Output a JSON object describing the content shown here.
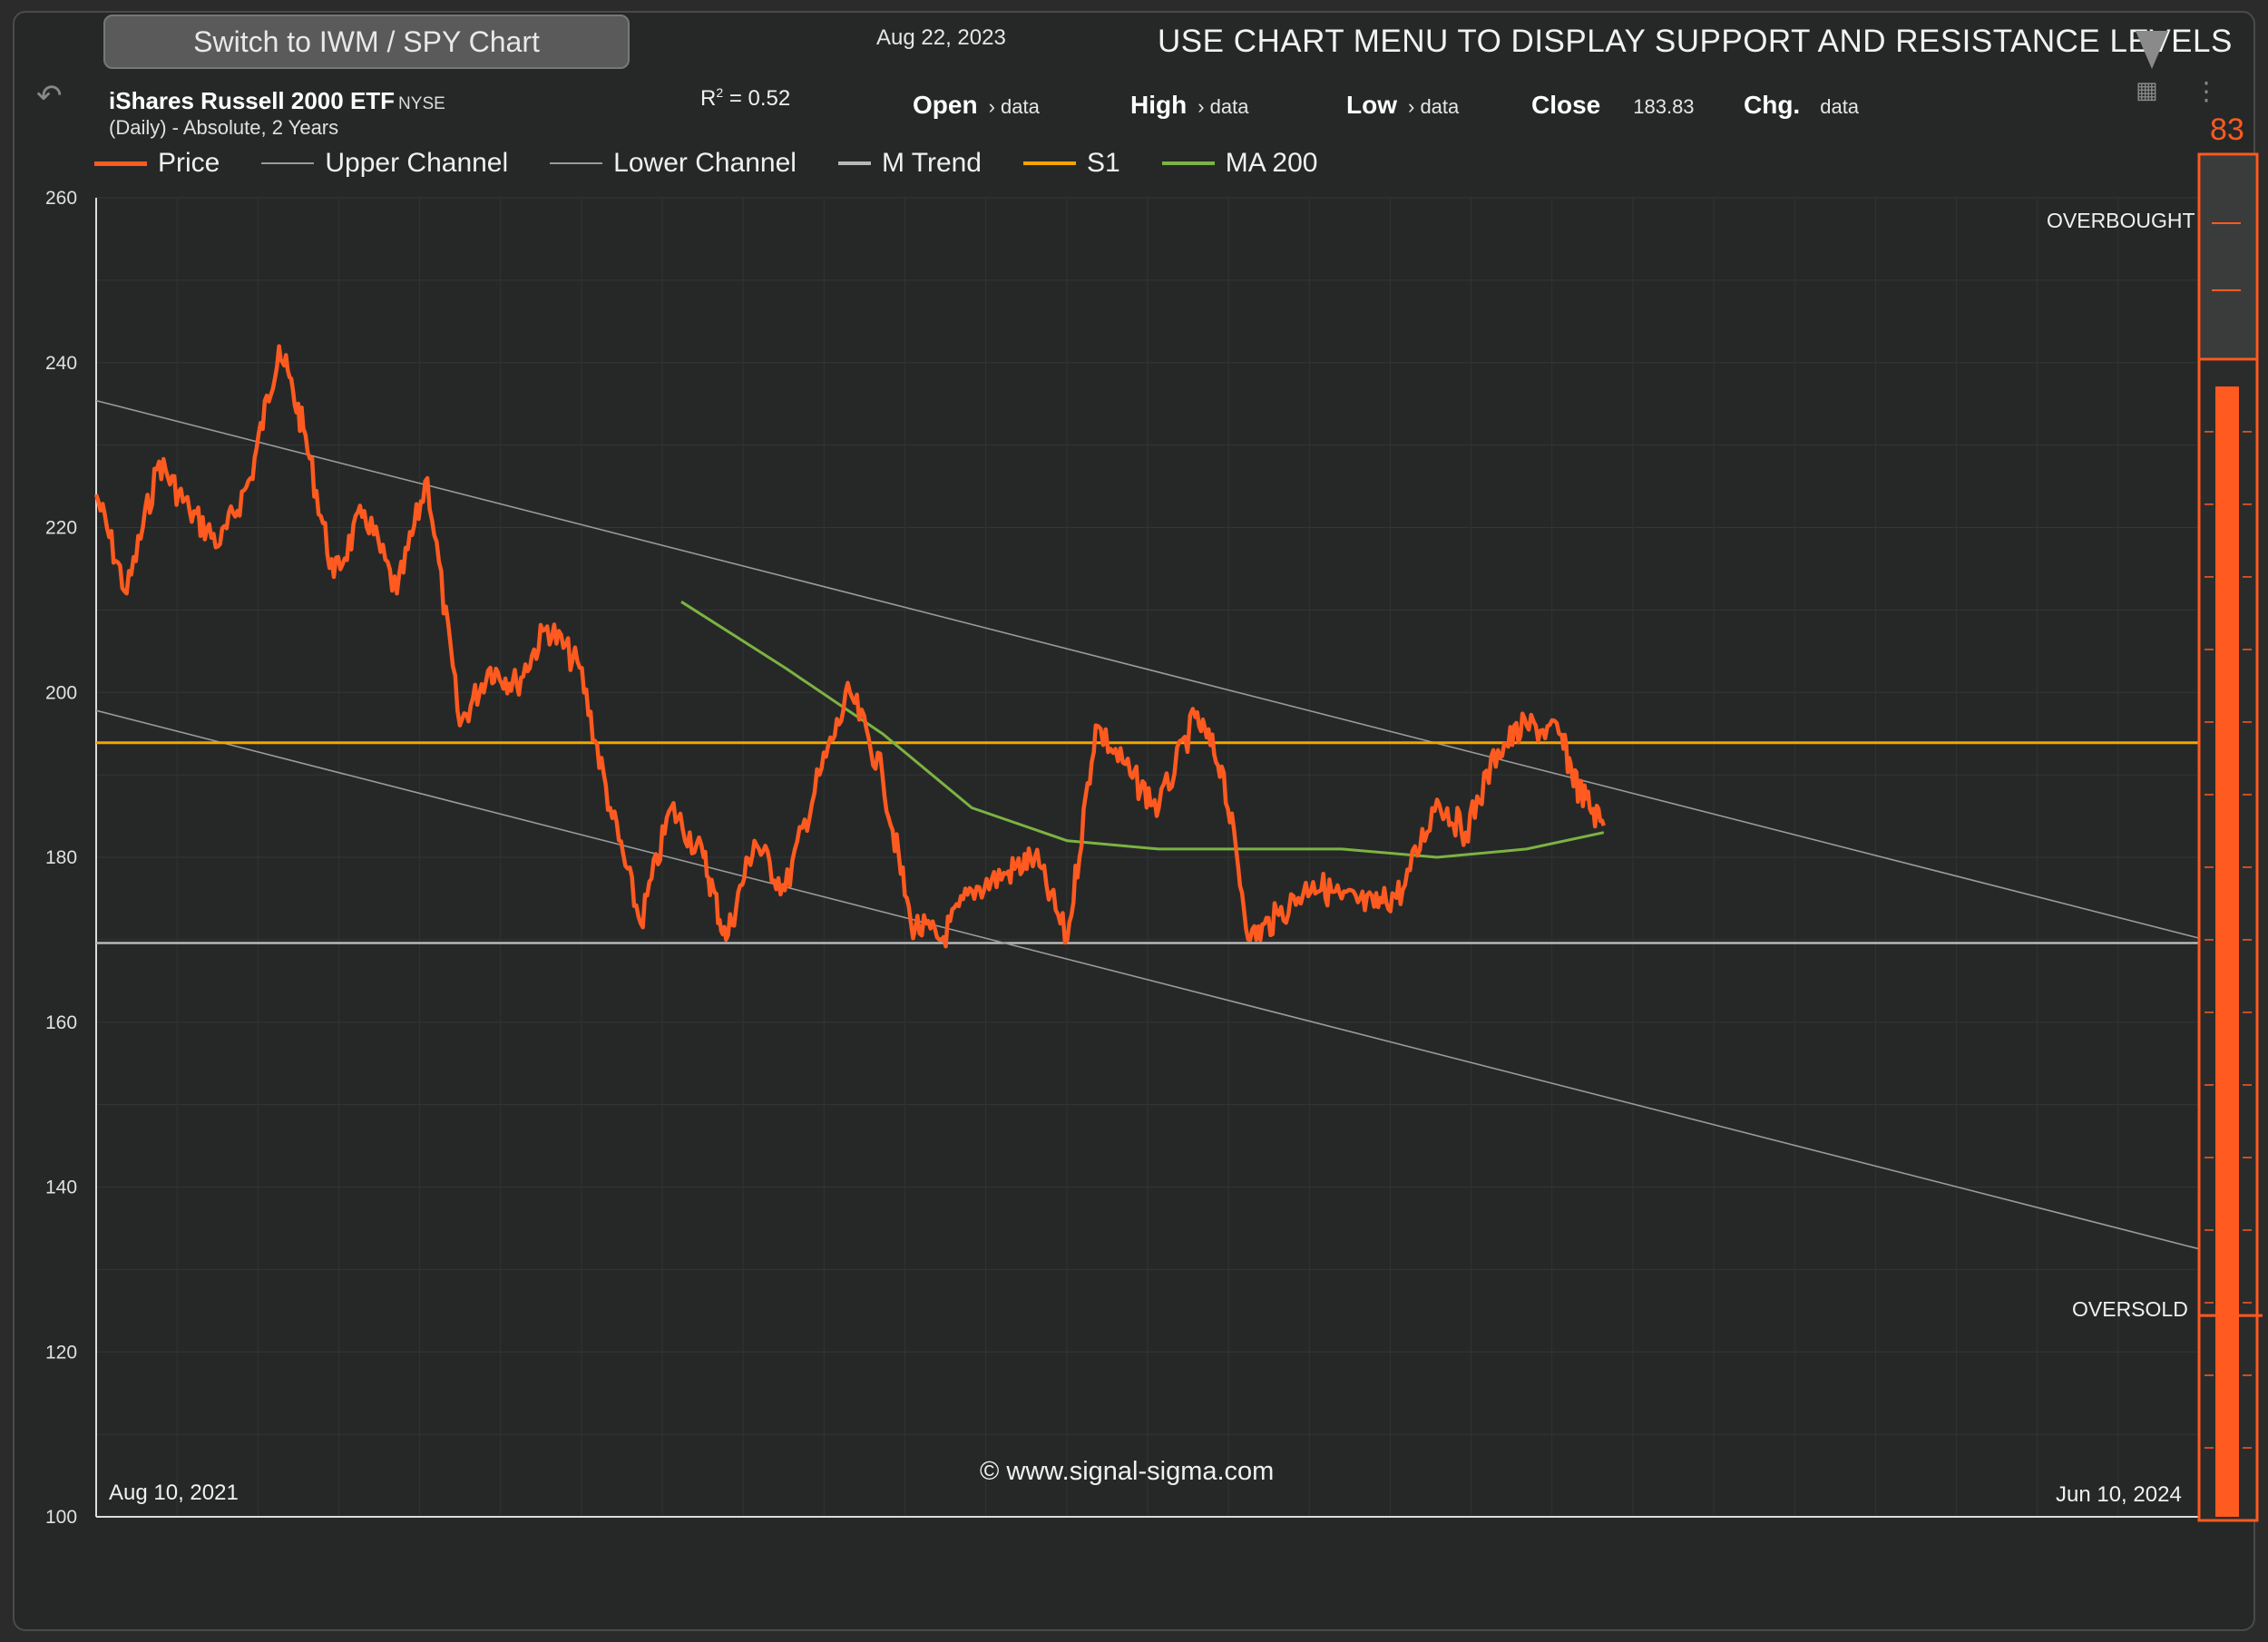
{
  "header": {
    "switch_button": "Switch to IWM / SPY Chart",
    "date": "Aug 22, 2023",
    "banner": "USE CHART MENU TO DISPLAY SUPPORT AND RESISTANCE LEVELS"
  },
  "instrument": {
    "name": "iShares Russell 2000 ETF",
    "exchange": "NYSE",
    "subtitle": "(Daily) - Absolute, 2 Years",
    "r2_label": "R",
    "r2_sup": "2",
    "r2_value": "=  0.52"
  },
  "ohlc": {
    "open_label": "Open",
    "open_value": "› data",
    "high_label": "High",
    "high_value": "› data",
    "low_label": "Low",
    "low_value": "› data",
    "close_label": "Close",
    "close_value": "183.83",
    "chg_label": "Chg.",
    "chg_value": "data"
  },
  "indicator": {
    "value": "83",
    "overbought_label": "OVERBOUGHT",
    "oversold_label": "OVERSOLD",
    "level_fraction": 0.83
  },
  "footer": {
    "copyright": "© www.signal-sigma.com",
    "date_start": "Aug 10, 2021",
    "date_end": "Jun 10, 2024"
  },
  "icons": [
    "undo-icon",
    "dropdown-triangle-icon",
    "chart-settings-icon",
    "more-vert-icon"
  ],
  "colors": {
    "price": "#ff5a1f",
    "channel": "#9a9a9a",
    "trend": "#b8b8b8",
    "s1": "#f0a500",
    "ma200": "#7cb342",
    "background": "#262828"
  },
  "chart_data": {
    "type": "line",
    "ylim": [
      100,
      260
    ],
    "yticks": [
      "100",
      "120",
      "140",
      "160",
      "180",
      "200",
      "220",
      "240",
      "260"
    ],
    "x_range": [
      "2021-08-10",
      "2024-06-10"
    ],
    "legend": [
      {
        "name": "Price",
        "color": "#ff5a1f"
      },
      {
        "name": "Upper Channel",
        "color": "#9a9a9a"
      },
      {
        "name": "Lower Channel",
        "color": "#9a9a9a"
      },
      {
        "name": "M Trend",
        "color": "#b8b8b8"
      },
      {
        "name": "S1",
        "color": "#f0a500"
      },
      {
        "name": "MA 200",
        "color": "#7cb342"
      }
    ],
    "series": [
      {
        "name": "Price",
        "x": [
          "2021-08-10",
          "2021-08-25",
          "2021-09-10",
          "2021-09-25",
          "2021-10-10",
          "2021-10-25",
          "2021-11-08",
          "2021-11-20",
          "2021-12-05",
          "2021-12-20",
          "2022-01-05",
          "2022-01-20",
          "2022-02-05",
          "2022-02-20",
          "2022-03-05",
          "2022-03-20",
          "2022-04-05",
          "2022-04-20",
          "2022-05-05",
          "2022-05-20",
          "2022-06-05",
          "2022-06-16",
          "2022-06-30",
          "2022-07-15",
          "2022-08-01",
          "2022-08-16",
          "2022-09-01",
          "2022-09-15",
          "2022-09-30",
          "2022-10-15",
          "2022-11-01",
          "2022-11-15",
          "2022-12-01",
          "2022-12-15",
          "2023-01-01",
          "2023-01-15",
          "2023-02-02",
          "2023-02-15",
          "2023-03-01",
          "2023-03-15",
          "2023-04-01",
          "2023-04-15",
          "2023-05-01",
          "2023-05-15",
          "2023-06-01",
          "2023-06-15",
          "2023-07-01",
          "2023-07-15",
          "2023-07-31",
          "2023-08-10",
          "2023-08-22"
        ],
        "values": [
          224,
          212,
          228,
          222,
          218,
          226,
          242,
          232,
          214,
          222,
          212,
          226,
          196,
          203,
          201,
          208,
          203,
          186,
          172,
          186,
          180,
          170,
          182,
          176,
          190,
          200,
          190,
          172,
          170,
          176,
          178,
          180,
          170,
          196,
          190,
          186,
          197,
          191,
          170,
          173,
          177,
          175,
          174,
          176,
          187,
          183,
          193,
          196,
          195,
          188,
          183.83
        ]
      },
      {
        "name": "Upper Channel",
        "x": [
          "2021-08-10",
          "2024-06-10"
        ],
        "values": [
          235.4,
          170.2
        ]
      },
      {
        "name": "Lower Channel",
        "x": [
          "2021-08-10",
          "2024-06-10"
        ],
        "values": [
          197.8,
          132.5
        ]
      },
      {
        "name": "M Trend",
        "x": [
          "2021-08-10",
          "2024-06-10"
        ],
        "values": [
          169.6,
          169.6
        ]
      },
      {
        "name": "S1",
        "x": [
          "2021-08-10",
          "2024-06-10"
        ],
        "values": [
          193.9,
          193.9
        ]
      },
      {
        "name": "MA 200",
        "x": [
          "2022-05-25",
          "2022-07-15",
          "2022-09-01",
          "2022-10-15",
          "2022-12-01",
          "2023-01-15",
          "2023-03-01",
          "2023-04-15",
          "2023-06-01",
          "2023-07-15",
          "2023-08-22"
        ],
        "values": [
          211,
          203,
          195,
          186,
          182,
          181,
          181,
          181,
          180,
          181,
          183
        ]
      }
    ]
  }
}
